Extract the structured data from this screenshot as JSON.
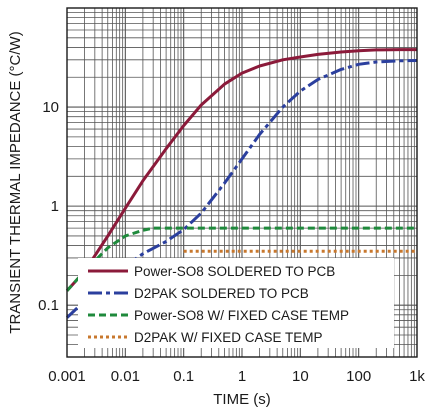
{
  "chart_data": {
    "type": "line",
    "title": "",
    "xlabel": "TIME (s)",
    "ylabel": "TRANSIENT THERMAL IMPEDANCE (°C/W)",
    "x_scale": "log",
    "y_scale": "log",
    "xlim": [
      0.001,
      1000
    ],
    "ylim": [
      0.03,
      100
    ],
    "x_ticks": [
      {
        "value": 0.001,
        "label": "0.001"
      },
      {
        "value": 0.01,
        "label": "0.01"
      },
      {
        "value": 0.1,
        "label": "0.1"
      },
      {
        "value": 1,
        "label": "1"
      },
      {
        "value": 10,
        "label": "10"
      },
      {
        "value": 100,
        "label": "100"
      },
      {
        "value": 1000,
        "label": "1k"
      }
    ],
    "y_ticks": [
      {
        "value": 0.1,
        "label": "0.1"
      },
      {
        "value": 1,
        "label": "1"
      },
      {
        "value": 10,
        "label": "10"
      }
    ],
    "grid": true,
    "legend_position": "bottom-center",
    "series": [
      {
        "name": "Power-SO8 SOLDERED TO PCB",
        "color": "#8b1a3a",
        "style": "solid",
        "points": [
          [
            0.001,
            0.14
          ],
          [
            0.002,
            0.22
          ],
          [
            0.005,
            0.5
          ],
          [
            0.01,
            0.95
          ],
          [
            0.02,
            1.8
          ],
          [
            0.05,
            3.8
          ],
          [
            0.1,
            6.5
          ],
          [
            0.2,
            10.5
          ],
          [
            0.5,
            17
          ],
          [
            1,
            22
          ],
          [
            2,
            26
          ],
          [
            5,
            30
          ],
          [
            10,
            32
          ],
          [
            20,
            34
          ],
          [
            50,
            36
          ],
          [
            100,
            37
          ],
          [
            200,
            37.8
          ],
          [
            500,
            38
          ],
          [
            1000,
            38
          ]
        ]
      },
      {
        "name": "D2PAK SOLDERED TO PCB",
        "color": "#2b3f9e",
        "style": "dashdot",
        "points": [
          [
            0.001,
            0.075
          ],
          [
            0.002,
            0.11
          ],
          [
            0.005,
            0.18
          ],
          [
            0.01,
            0.25
          ],
          [
            0.02,
            0.33
          ],
          [
            0.05,
            0.44
          ],
          [
            0.1,
            0.58
          ],
          [
            0.2,
            0.85
          ],
          [
            0.5,
            1.7
          ],
          [
            1,
            3.0
          ],
          [
            2,
            5.3
          ],
          [
            5,
            10
          ],
          [
            10,
            14.5
          ],
          [
            20,
            19
          ],
          [
            50,
            24
          ],
          [
            100,
            27
          ],
          [
            200,
            28.5
          ],
          [
            500,
            29.3
          ],
          [
            1000,
            29.5
          ]
        ]
      },
      {
        "name": "Power-SO8 W/ FIXED CASE TEMP",
        "color": "#1f8a3c",
        "style": "dashed",
        "points": [
          [
            0.001,
            0.14
          ],
          [
            0.002,
            0.22
          ],
          [
            0.005,
            0.38
          ],
          [
            0.01,
            0.5
          ],
          [
            0.02,
            0.57
          ],
          [
            0.03,
            0.6
          ],
          [
            0.05,
            0.6
          ],
          [
            0.1,
            0.6
          ],
          [
            1,
            0.6
          ],
          [
            10,
            0.6
          ],
          [
            100,
            0.6
          ],
          [
            1000,
            0.6
          ]
        ]
      },
      {
        "name": "D2PAK W/ FIXED CASE TEMP",
        "color": "#c8782e",
        "style": "dotted",
        "points": [
          [
            0.1,
            0.35
          ],
          [
            0.2,
            0.35
          ],
          [
            1,
            0.35
          ],
          [
            10,
            0.35
          ],
          [
            100,
            0.35
          ],
          [
            1000,
            0.35
          ]
        ]
      }
    ]
  }
}
